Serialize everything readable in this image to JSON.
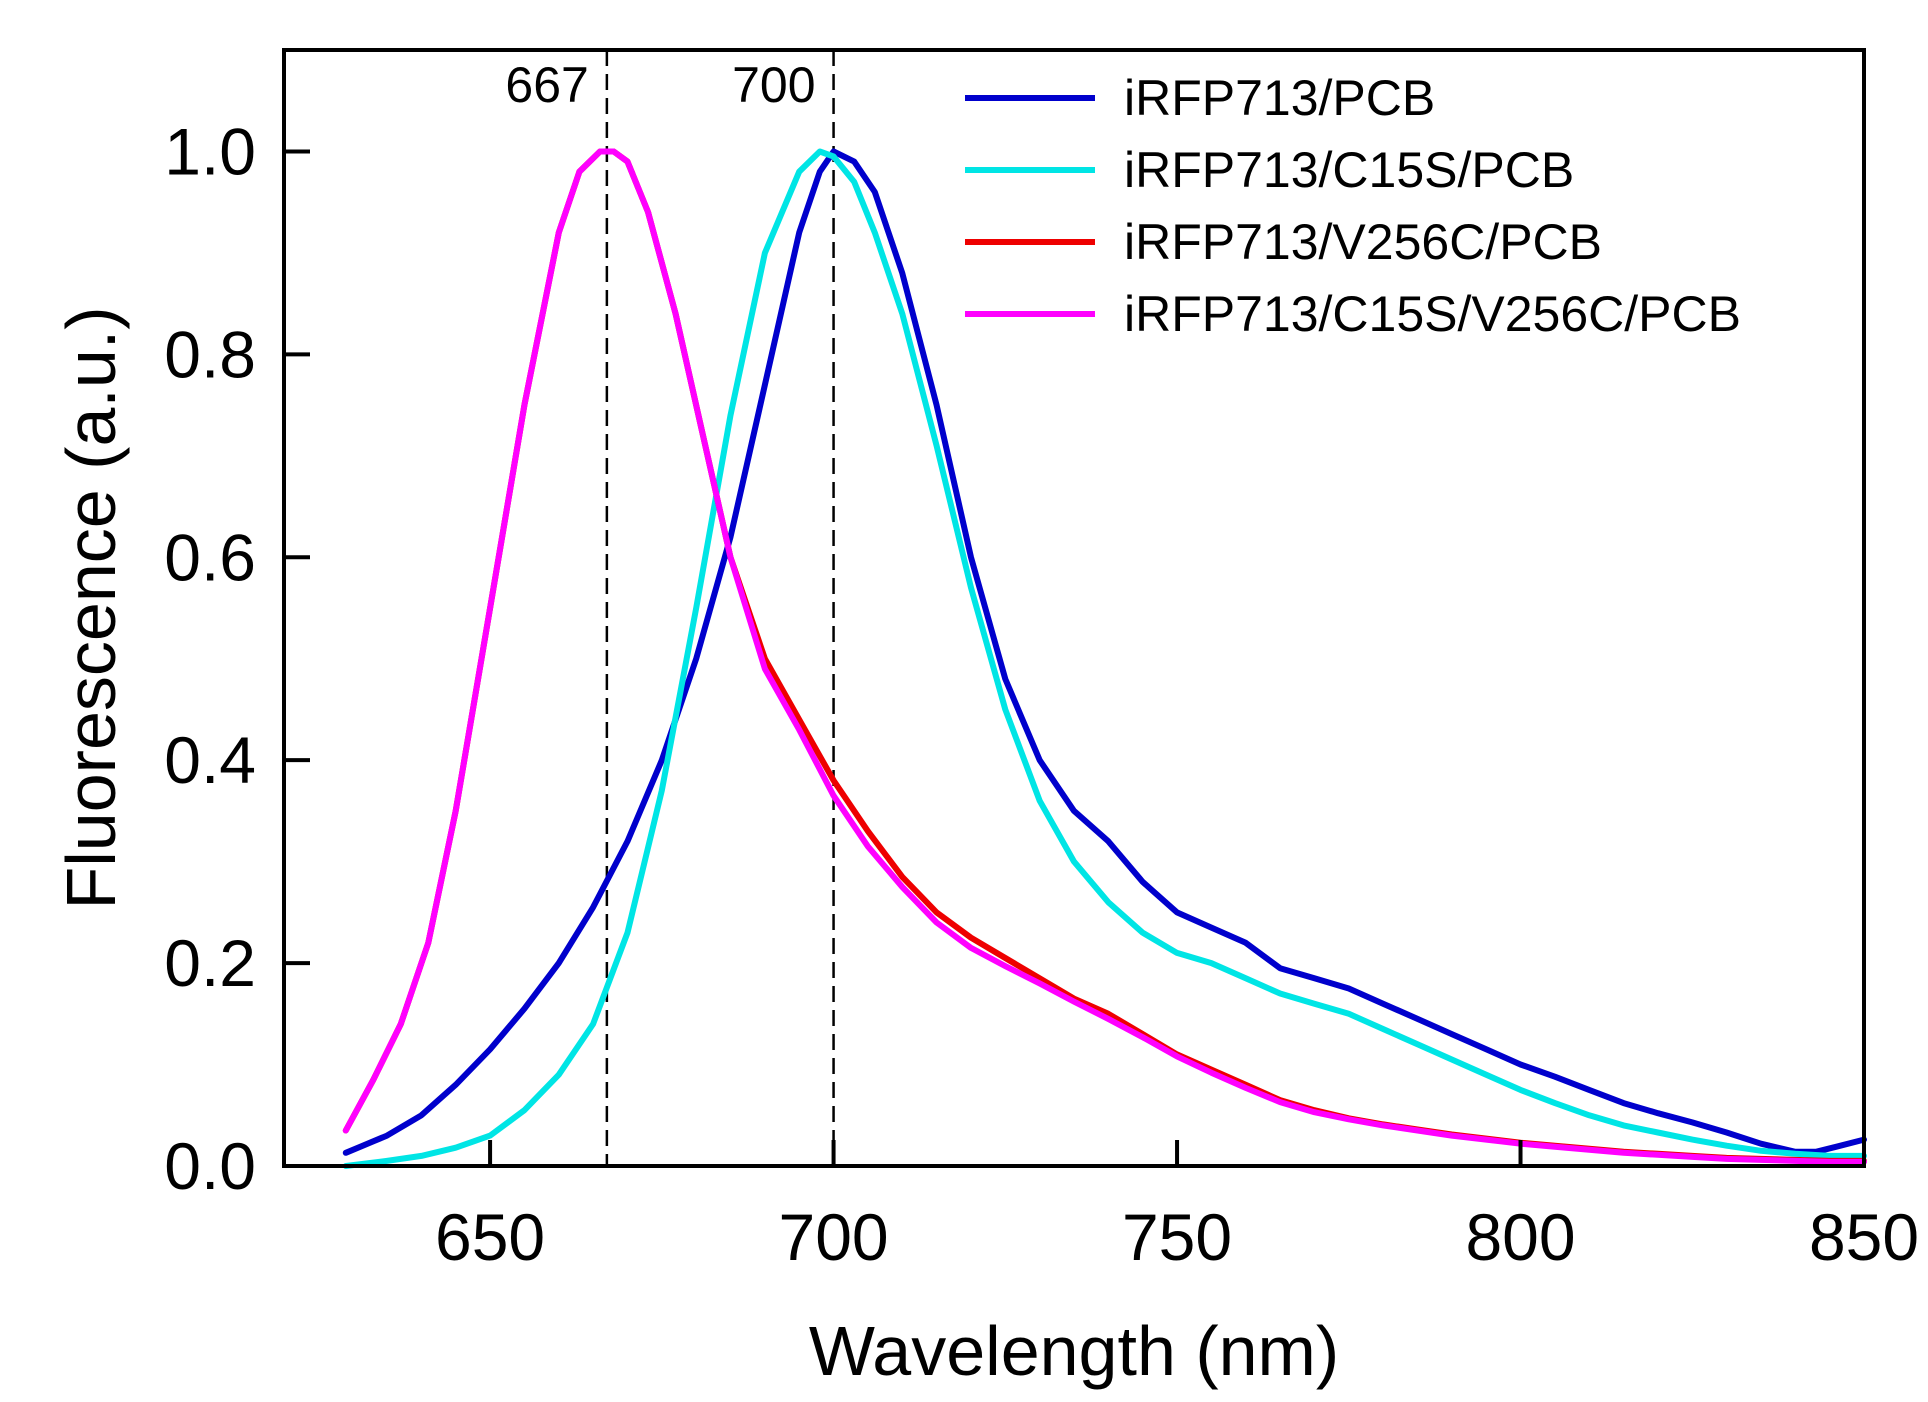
{
  "chart_data": {
    "type": "line",
    "title": "",
    "xlabel": "Wavelength (nm)",
    "ylabel": "Fluorescence (a.u.)",
    "xlim": [
      620,
      850
    ],
    "ylim": [
      0,
      1.1
    ],
    "xticks": [
      650,
      700,
      750,
      800,
      850
    ],
    "xtick_labels": [
      "650",
      "700",
      "750",
      "800",
      "850"
    ],
    "yticks": [
      0,
      0.2,
      0.4,
      0.6,
      0.8,
      1.0
    ],
    "ytick_labels": [
      "0.0",
      "0.2",
      "0.4",
      "0.6",
      "0.8",
      "1.0"
    ],
    "grid": false,
    "legend_position": "top-right",
    "vlines": [
      {
        "x": 667,
        "label": "667"
      },
      {
        "x": 700,
        "label": "700"
      }
    ],
    "series": [
      {
        "name": "iRFP713/PCB",
        "color": "#0000cc",
        "x": [
          629,
          635,
          640,
          645,
          650,
          655,
          660,
          665,
          670,
          675,
          680,
          685,
          690,
          695,
          698,
          700,
          703,
          706,
          710,
          715,
          720,
          725,
          730,
          735,
          740,
          745,
          750,
          755,
          760,
          765,
          770,
          775,
          780,
          785,
          790,
          795,
          800,
          805,
          810,
          815,
          820,
          825,
          830,
          835,
          840,
          843,
          846,
          850
        ],
        "y": [
          0.013,
          0.03,
          0.05,
          0.08,
          0.115,
          0.155,
          0.2,
          0.255,
          0.32,
          0.4,
          0.5,
          0.62,
          0.77,
          0.92,
          0.98,
          1.0,
          0.99,
          0.96,
          0.88,
          0.75,
          0.6,
          0.48,
          0.4,
          0.35,
          0.32,
          0.28,
          0.25,
          0.235,
          0.22,
          0.195,
          0.185,
          0.175,
          0.16,
          0.145,
          0.13,
          0.115,
          0.1,
          0.088,
          0.075,
          0.062,
          0.052,
          0.043,
          0.033,
          0.022,
          0.014,
          0.014,
          0.019,
          0.026
        ]
      },
      {
        "name": "iRFP713/C15S/PCB",
        "color": "#00e5e5",
        "x": [
          629,
          635,
          640,
          645,
          650,
          655,
          660,
          665,
          670,
          675,
          680,
          685,
          690,
          695,
          698,
          700,
          703,
          706,
          710,
          715,
          720,
          725,
          730,
          735,
          740,
          745,
          750,
          755,
          760,
          765,
          770,
          775,
          780,
          785,
          790,
          795,
          800,
          805,
          810,
          815,
          820,
          825,
          830,
          835,
          840,
          845,
          850
        ],
        "y": [
          0.0,
          0.005,
          0.01,
          0.018,
          0.03,
          0.055,
          0.09,
          0.14,
          0.23,
          0.37,
          0.55,
          0.74,
          0.9,
          0.98,
          1.0,
          0.995,
          0.97,
          0.92,
          0.84,
          0.71,
          0.57,
          0.45,
          0.36,
          0.3,
          0.26,
          0.23,
          0.21,
          0.2,
          0.185,
          0.17,
          0.16,
          0.15,
          0.135,
          0.12,
          0.105,
          0.09,
          0.075,
          0.062,
          0.05,
          0.04,
          0.033,
          0.026,
          0.02,
          0.015,
          0.012,
          0.01,
          0.01
        ]
      },
      {
        "name": "iRFP713/V256C/PCB",
        "color": "#ee0000",
        "x": [
          629,
          633,
          637,
          641,
          645,
          650,
          655,
          660,
          663,
          666,
          668,
          670,
          673,
          677,
          681,
          685,
          690,
          695,
          700,
          705,
          710,
          715,
          720,
          725,
          730,
          735,
          740,
          745,
          750,
          755,
          760,
          765,
          770,
          775,
          780,
          785,
          790,
          795,
          800,
          805,
          810,
          815,
          820,
          825,
          830,
          835,
          840,
          845,
          850
        ],
        "y": [
          0.035,
          0.085,
          0.14,
          0.22,
          0.35,
          0.55,
          0.75,
          0.92,
          0.98,
          1.0,
          1.0,
          0.99,
          0.94,
          0.84,
          0.72,
          0.6,
          0.5,
          0.44,
          0.38,
          0.33,
          0.285,
          0.25,
          0.225,
          0.205,
          0.185,
          0.165,
          0.15,
          0.13,
          0.11,
          0.095,
          0.08,
          0.065,
          0.055,
          0.047,
          0.041,
          0.036,
          0.031,
          0.027,
          0.023,
          0.02,
          0.017,
          0.014,
          0.012,
          0.01,
          0.008,
          0.007,
          0.006,
          0.005,
          0.005
        ]
      },
      {
        "name": "iRFP713/C15S/V256C/PCB",
        "color": "#ff00ff",
        "x": [
          629,
          633,
          637,
          641,
          645,
          650,
          655,
          660,
          663,
          666,
          668,
          670,
          673,
          677,
          681,
          685,
          690,
          695,
          700,
          705,
          710,
          715,
          720,
          725,
          730,
          735,
          740,
          745,
          750,
          755,
          760,
          765,
          770,
          775,
          780,
          785,
          790,
          795,
          800,
          805,
          810,
          815,
          820,
          825,
          830,
          835,
          840,
          845,
          850
        ],
        "y": [
          0.035,
          0.085,
          0.14,
          0.22,
          0.35,
          0.55,
          0.75,
          0.92,
          0.98,
          1.0,
          1.0,
          0.99,
          0.94,
          0.84,
          0.72,
          0.6,
          0.49,
          0.43,
          0.365,
          0.315,
          0.275,
          0.24,
          0.215,
          0.197,
          0.18,
          0.162,
          0.145,
          0.127,
          0.108,
          0.092,
          0.077,
          0.063,
          0.053,
          0.046,
          0.04,
          0.035,
          0.03,
          0.026,
          0.022,
          0.019,
          0.016,
          0.013,
          0.011,
          0.009,
          0.007,
          0.006,
          0.005,
          0.004,
          0.004
        ]
      }
    ]
  }
}
